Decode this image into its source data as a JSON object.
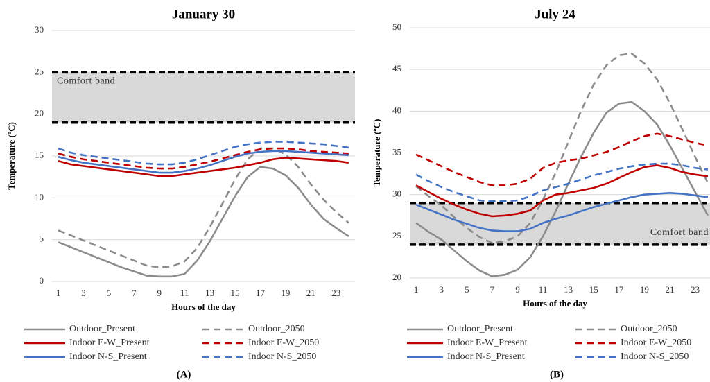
{
  "chart_data": [
    {
      "type": "line",
      "title": "January 30",
      "x_label": "Hours of the day",
      "y_label": "Temperature (ºC)",
      "panel_label": "(A)",
      "x": [
        1,
        2,
        3,
        4,
        5,
        6,
        7,
        8,
        9,
        10,
        11,
        12,
        13,
        14,
        15,
        16,
        17,
        18,
        19,
        20,
        21,
        22,
        23,
        24
      ],
      "xlim": [
        0.5,
        24.5
      ],
      "xticks": [
        1,
        3,
        5,
        7,
        9,
        11,
        13,
        15,
        17,
        19,
        21,
        23
      ],
      "ylim": [
        0,
        30
      ],
      "yticks": [
        0,
        5,
        10,
        15,
        20,
        25,
        30
      ],
      "grid": true,
      "comfort_band": {
        "label": "Comfort band",
        "lower": 19,
        "upper": 25
      },
      "series": [
        {
          "name": "Outdoor_Present",
          "color": "#8c8c8c",
          "dashed": false,
          "values": [
            4.7,
            4.1,
            3.5,
            2.9,
            2.3,
            1.7,
            1.2,
            0.7,
            0.6,
            0.6,
            0.9,
            2.5,
            4.8,
            7.5,
            10.2,
            12.5,
            13.7,
            13.5,
            12.7,
            11.2,
            9.2,
            7.5,
            6.4,
            5.4
          ]
        },
        {
          "name": "Outdoor_2050",
          "color": "#8c8c8c",
          "dashed": true,
          "values": [
            6.1,
            5.5,
            4.9,
            4.3,
            3.7,
            3.1,
            2.5,
            1.9,
            1.7,
            1.8,
            2.4,
            4.0,
            6.5,
            9.3,
            12.2,
            14.6,
            15.9,
            15.9,
            15.2,
            13.7,
            11.6,
            9.8,
            8.3,
            7.0
          ]
        },
        {
          "name": "Indoor E-W_Present",
          "color": "#c00000",
          "dashed": false,
          "values": [
            14.4,
            14.0,
            13.8,
            13.6,
            13.4,
            13.2,
            13.0,
            12.8,
            12.6,
            12.6,
            12.8,
            13.0,
            13.2,
            13.4,
            13.6,
            13.9,
            14.2,
            14.6,
            14.8,
            14.7,
            14.6,
            14.5,
            14.4,
            14.2
          ]
        },
        {
          "name": "Indoor E-W_2050",
          "color": "#c00000",
          "dashed": true,
          "values": [
            15.3,
            14.9,
            14.6,
            14.4,
            14.2,
            14.0,
            13.8,
            13.6,
            13.5,
            13.5,
            13.7,
            14.0,
            14.3,
            14.7,
            15.1,
            15.5,
            15.8,
            15.9,
            15.9,
            15.8,
            15.6,
            15.5,
            15.4,
            15.3
          ]
        },
        {
          "name": "Indoor N-S_Present",
          "color": "#4472c4",
          "dashed": false,
          "values": [
            14.9,
            14.5,
            14.2,
            14.0,
            13.8,
            13.6,
            13.4,
            13.2,
            13.0,
            13.0,
            13.2,
            13.5,
            13.9,
            14.4,
            14.9,
            15.3,
            15.5,
            15.6,
            15.6,
            15.5,
            15.4,
            15.3,
            15.2,
            15.1
          ]
        },
        {
          "name": "Indoor N-S_2050",
          "color": "#4472c4",
          "dashed": true,
          "values": [
            15.9,
            15.4,
            15.1,
            14.9,
            14.7,
            14.5,
            14.3,
            14.1,
            14.0,
            14.0,
            14.2,
            14.6,
            15.1,
            15.6,
            16.1,
            16.4,
            16.6,
            16.7,
            16.7,
            16.6,
            16.5,
            16.4,
            16.2,
            16.0
          ]
        }
      ]
    },
    {
      "type": "line",
      "title": "July 24",
      "x_label": "Hours of the day",
      "y_label": "Temperature (ºC)",
      "panel_label": "(B)",
      "x": [
        1,
        2,
        3,
        4,
        5,
        6,
        7,
        8,
        9,
        10,
        11,
        12,
        13,
        14,
        15,
        16,
        17,
        18,
        19,
        20,
        21,
        22,
        23,
        24
      ],
      "xlim": [
        0.5,
        24.5
      ],
      "xticks": [
        1,
        3,
        5,
        7,
        9,
        11,
        13,
        15,
        17,
        19,
        21,
        23
      ],
      "ylim": [
        20,
        50
      ],
      "yticks": [
        20,
        25,
        30,
        35,
        40,
        45,
        50
      ],
      "grid": true,
      "comfort_band": {
        "label": "Comfort band",
        "lower": 24,
        "upper": 29
      },
      "series": [
        {
          "name": "Outdoor_Present",
          "color": "#8c8c8c",
          "dashed": false,
          "values": [
            26.6,
            25.5,
            24.6,
            23.3,
            22.0,
            20.9,
            20.2,
            20.4,
            21.0,
            22.5,
            25.0,
            28.0,
            31.3,
            34.5,
            37.4,
            39.8,
            40.9,
            41.1,
            40.0,
            38.4,
            35.9,
            33.1,
            30.3,
            27.5
          ]
        },
        {
          "name": "Outdoor_2050",
          "color": "#8c8c8c",
          "dashed": true,
          "values": [
            31.0,
            29.8,
            28.7,
            27.3,
            26.0,
            24.9,
            24.2,
            24.4,
            25.0,
            26.6,
            29.4,
            32.6,
            36.3,
            40.0,
            43.2,
            45.5,
            46.7,
            46.9,
            45.7,
            43.8,
            41.0,
            37.8,
            34.5,
            31.4
          ]
        },
        {
          "name": "Indoor E-W_Present",
          "color": "#c00000",
          "dashed": false,
          "values": [
            31.1,
            30.3,
            29.5,
            28.8,
            28.2,
            27.7,
            27.4,
            27.5,
            27.7,
            28.1,
            29.3,
            30.0,
            30.2,
            30.5,
            30.8,
            31.3,
            32.0,
            32.7,
            33.3,
            33.5,
            33.2,
            32.7,
            32.4,
            32.2
          ]
        },
        {
          "name": "Indoor E-W_2050",
          "color": "#c00000",
          "dashed": true,
          "values": [
            34.8,
            34.1,
            33.4,
            32.7,
            32.1,
            31.5,
            31.1,
            31.1,
            31.3,
            31.9,
            33.2,
            33.8,
            34.1,
            34.3,
            34.7,
            35.1,
            35.7,
            36.4,
            37.0,
            37.3,
            37.0,
            36.6,
            36.2,
            35.9
          ]
        },
        {
          "name": "Indoor N-S_Present",
          "color": "#4472c4",
          "dashed": false,
          "values": [
            28.8,
            28.2,
            27.6,
            27.0,
            26.5,
            26.0,
            25.7,
            25.6,
            25.6,
            25.9,
            26.6,
            27.1,
            27.5,
            28.0,
            28.5,
            28.9,
            29.3,
            29.7,
            30.0,
            30.1,
            30.2,
            30.1,
            29.9,
            29.7
          ]
        },
        {
          "name": "Indoor N-S_2050",
          "color": "#4472c4",
          "dashed": true,
          "values": [
            32.4,
            31.6,
            30.9,
            30.3,
            29.8,
            29.3,
            29.2,
            29.2,
            29.3,
            29.8,
            30.5,
            30.9,
            31.3,
            31.8,
            32.3,
            32.7,
            33.1,
            33.4,
            33.6,
            33.7,
            33.7,
            33.5,
            33.2,
            33.0
          ]
        }
      ]
    }
  ]
}
